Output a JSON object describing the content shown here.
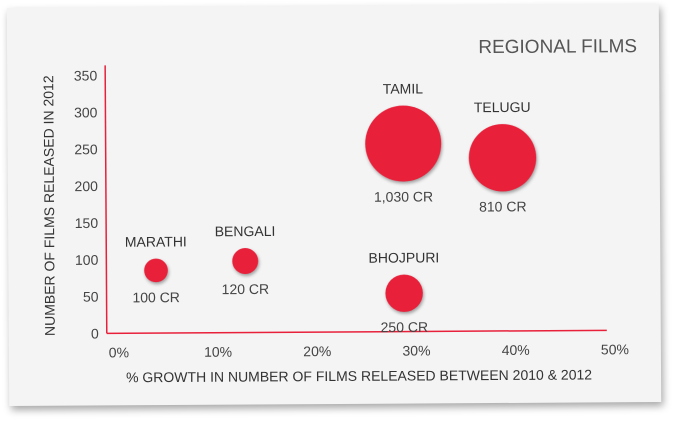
{
  "chart_data": {
    "type": "scatter",
    "title": "REGIONAL FILMS",
    "xlabel": "% GROWTH IN NUMBER OF FILMS RELEASED BETWEEN 2010 & 2012",
    "ylabel": "NUMBER OF FILMS RELEASED IN 2012",
    "xlim": [
      0,
      50
    ],
    "ylim": [
      0,
      350
    ],
    "x_ticks": [
      "0%",
      "10%",
      "20%",
      "30%",
      "40%",
      "50%"
    ],
    "x_tick_values": [
      0,
      10,
      20,
      30,
      40,
      50
    ],
    "y_ticks": [
      "0",
      "50",
      "100",
      "150",
      "200",
      "250",
      "300",
      "350"
    ],
    "y_tick_values": [
      0,
      50,
      100,
      150,
      200,
      250,
      300,
      350
    ],
    "bubble_color": "#e8203a",
    "axis_color": "#e8203a",
    "grid": false,
    "points": [
      {
        "name": "MARATHI",
        "x": 5,
        "y": 85,
        "size": 100,
        "size_label": "100 CR"
      },
      {
        "name": "BENGALI",
        "x": 14,
        "y": 97,
        "size": 120,
        "size_label": "120 CR"
      },
      {
        "name": "TAMIL",
        "x": 30,
        "y": 255,
        "size": 1030,
        "size_label": "1,030 CR"
      },
      {
        "name": "TELUGU",
        "x": 40,
        "y": 235,
        "size": 810,
        "size_label": "810 CR"
      },
      {
        "name": "BHOJPURI",
        "x": 30,
        "y": 52,
        "size": 250,
        "size_label": "250 CR"
      }
    ]
  }
}
